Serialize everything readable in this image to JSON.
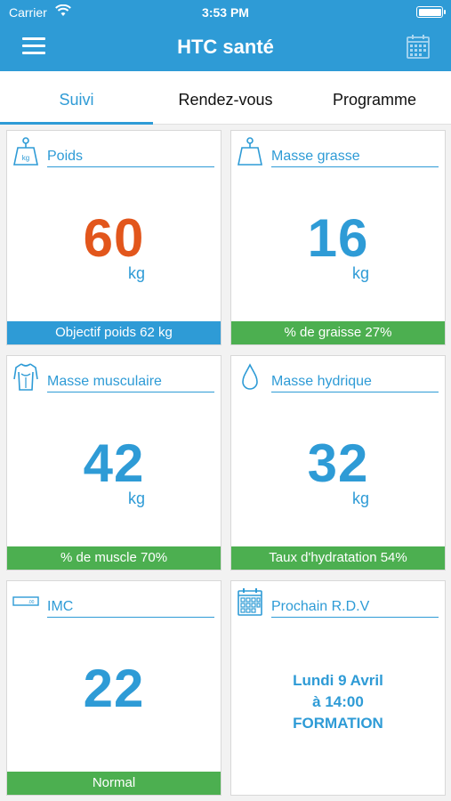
{
  "status_bar": {
    "carrier": "Carrier",
    "time": "3:53 PM"
  },
  "header": {
    "title": "HTC santé"
  },
  "tabs": [
    {
      "label": "Suivi",
      "active": true
    },
    {
      "label": "Rendez-vous",
      "active": false
    },
    {
      "label": "Programme",
      "active": false
    }
  ],
  "cards": {
    "poids": {
      "label": "Poids",
      "value": "60",
      "unit": "kg",
      "footer": "Objectif poids 62 kg",
      "icon": "scale-weight-icon",
      "icon_text": "kg"
    },
    "masse_grasse": {
      "label": "Masse grasse",
      "value": "16",
      "unit": "kg",
      "footer": "% de graisse 27%",
      "icon": "scale-icon"
    },
    "masse_musculaire": {
      "label": "Masse musculaire",
      "value": "42",
      "unit": "kg",
      "footer": "% de muscle 70%",
      "icon": "body-icon"
    },
    "masse_hydrique": {
      "label": "Masse hydrique",
      "value": "32",
      "unit": "kg",
      "footer": "Taux d'hydratation 54%",
      "icon": "water-drop-icon"
    },
    "imc": {
      "label": "IMC",
      "value": "22",
      "footer": "Normal",
      "icon": "display-icon",
      "icon_text": ".00"
    },
    "rdv": {
      "label": "Prochain R.D.V",
      "line1": "Lundi 9 Avril",
      "line2": "à 14:00",
      "line3": "FORMATION",
      "icon": "calendar-icon"
    }
  },
  "colors": {
    "primary": "#2e9bd6",
    "accent_orange": "#e2561c",
    "green": "#4caf50"
  }
}
